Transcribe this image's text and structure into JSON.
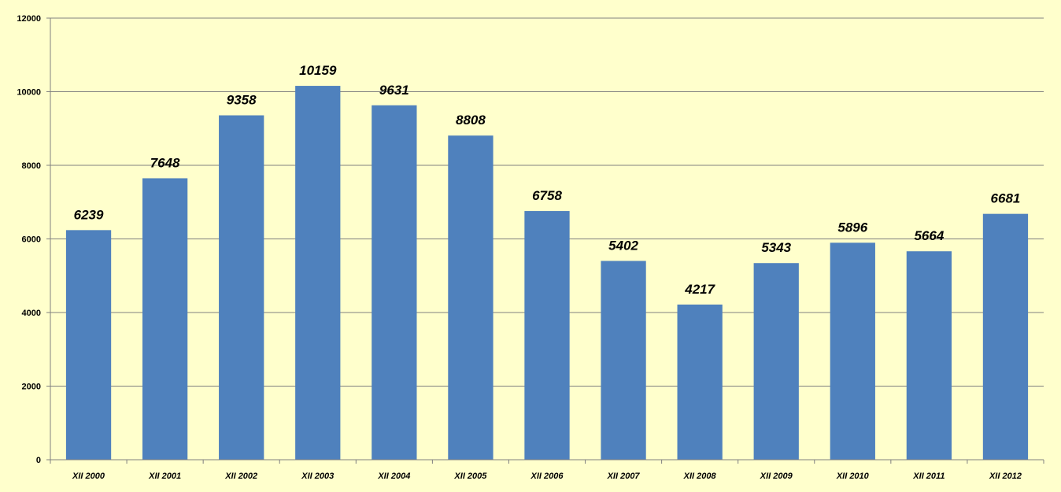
{
  "chart_data": {
    "type": "bar",
    "categories": [
      "XII 2000",
      "XII 2001",
      "XII 2002",
      "XII 2003",
      "XII 2004",
      "XII 2005",
      "XII 2006",
      "XII 2007",
      "XII 2008",
      "XII 2009",
      "XII 2010",
      "XII 2011",
      "XII 2012"
    ],
    "values": [
      6239,
      7648,
      9358,
      10159,
      9631,
      8808,
      6758,
      5402,
      4217,
      5343,
      5896,
      5664,
      6681
    ],
    "data_labels": [
      "6239",
      "7648",
      "9358",
      "10159",
      "9631",
      "8808",
      "6758",
      "5402",
      "4217",
      "5343",
      "5896",
      "5664",
      "6681"
    ],
    "title": "",
    "xlabel": "",
    "ylabel": "",
    "ylim": [
      0,
      12000
    ],
    "yticks": [
      "0",
      "2000",
      "4000",
      "6000",
      "8000",
      "10000",
      "12000"
    ],
    "grid": true,
    "legend": "none",
    "colors": {
      "bar": "#4F81BD",
      "background": "#FFFFCC",
      "grid": "#808080"
    }
  }
}
